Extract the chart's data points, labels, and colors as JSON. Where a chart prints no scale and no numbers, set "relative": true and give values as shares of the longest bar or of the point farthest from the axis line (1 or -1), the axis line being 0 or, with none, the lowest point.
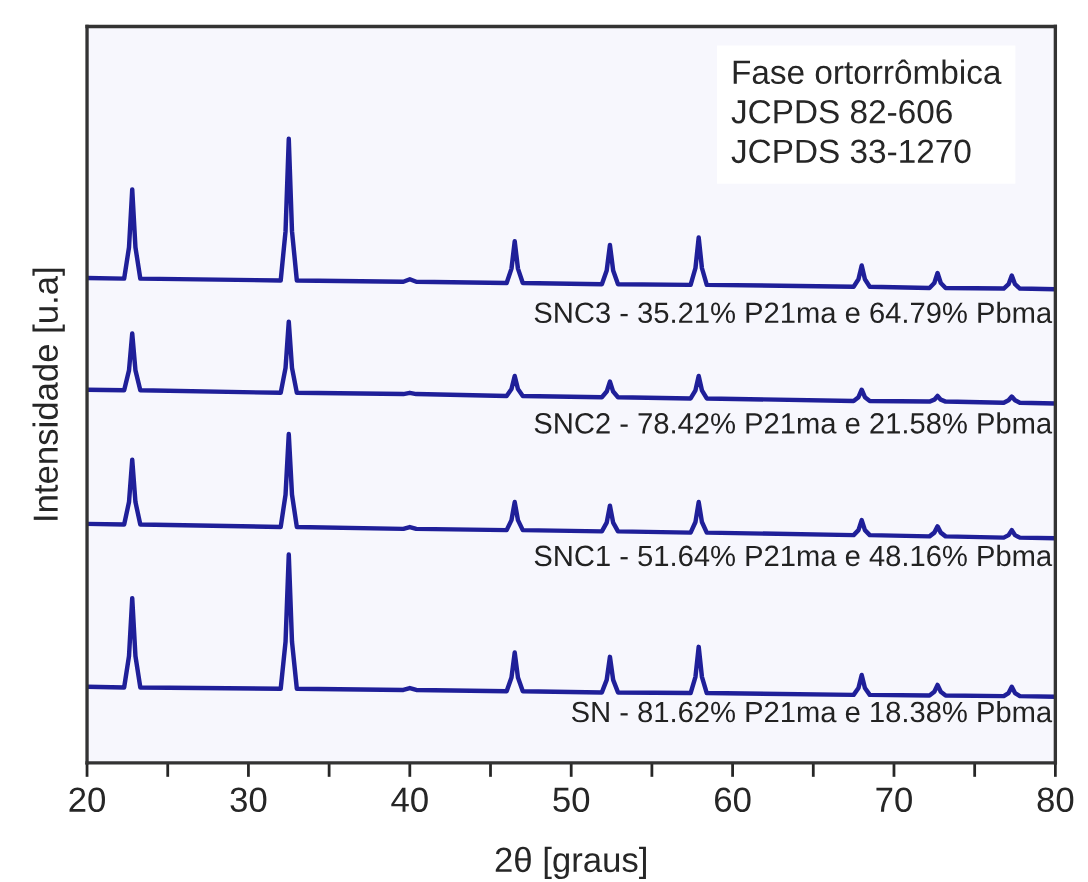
{
  "chart_data": {
    "type": "line",
    "relative": true,
    "xlabel": "2θ [graus]",
    "ylabel": "Intensidade [u.a]",
    "xlim": [
      20,
      80
    ],
    "xticks": [
      20,
      {
        "value": 25,
        "label": null
      },
      30,
      {
        "value": 35,
        "label": null
      },
      40,
      {
        "value": 45,
        "label": null
      },
      50,
      {
        "value": 55,
        "label": null
      },
      60,
      {
        "value": 65,
        "label": null
      },
      70,
      {
        "value": 75,
        "label": null
      },
      80
    ],
    "tick_labels": "x",
    "grid": false,
    "legend": false,
    "marker": "none",
    "line_style": "solid",
    "annotations": [
      "Fase ortorrômbica\nJCPDS 82-606\nJCPDS 33-1270"
    ],
    "x": [
      20,
      22.3,
      22.6,
      22.8,
      23.0,
      23.3,
      32.0,
      32.3,
      32.5,
      32.7,
      33.0,
      39.6,
      40.0,
      40.4,
      46.0,
      46.3,
      46.5,
      46.7,
      47.0,
      51.9,
      52.2,
      52.4,
      52.6,
      52.9,
      57.4,
      57.7,
      57.9,
      58.1,
      58.4,
      67.5,
      67.8,
      68.0,
      68.2,
      68.5,
      72.2,
      72.5,
      72.7,
      72.9,
      73.2,
      76.8,
      77.1,
      77.3,
      77.5,
      77.8,
      80
    ],
    "series": [
      {
        "name": "SN - 81.62% P21ma e 18.38% Pbma",
        "color": "#1f1f99",
        "values": [
          0.122,
          0.121,
          0.171,
          0.264,
          0.171,
          0.121,
          0.119,
          0.194,
          0.334,
          0.194,
          0.119,
          0.117,
          0.12,
          0.117,
          0.115,
          0.137,
          0.177,
          0.137,
          0.115,
          0.113,
          0.133,
          0.17,
          0.133,
          0.113,
          0.112,
          0.138,
          0.186,
          0.138,
          0.112,
          0.109,
          0.12,
          0.141,
          0.12,
          0.109,
          0.108,
          0.114,
          0.125,
          0.114,
          0.108,
          0.107,
          0.112,
          0.122,
          0.112,
          0.107,
          0.106
        ]
      },
      {
        "name": "SNC1 - 51.64% P21ma e 48.16% Pbma",
        "color": "#1f1f99",
        "values": [
          0.383,
          0.382,
          0.418,
          0.486,
          0.418,
          0.382,
          0.378,
          0.43,
          0.527,
          0.43,
          0.378,
          0.375,
          0.378,
          0.375,
          0.373,
          0.389,
          0.418,
          0.389,
          0.373,
          0.371,
          0.385,
          0.412,
          0.385,
          0.371,
          0.369,
          0.386,
          0.418,
          0.386,
          0.369,
          0.365,
          0.373,
          0.389,
          0.373,
          0.365,
          0.363,
          0.369,
          0.379,
          0.369,
          0.363,
          0.361,
          0.365,
          0.373,
          0.365,
          0.361,
          0.36
        ]
      },
      {
        "name": "SNC2 - 78.42% P21ma e 21.58% Pbma",
        "color": "#1f1f99",
        "values": [
          0.598,
          0.597,
          0.629,
          0.688,
          0.629,
          0.597,
          0.593,
          0.633,
          0.707,
          0.633,
          0.593,
          0.591,
          0.593,
          0.591,
          0.588,
          0.599,
          0.62,
          0.599,
          0.588,
          0.586,
          0.595,
          0.611,
          0.595,
          0.586,
          0.584,
          0.597,
          0.62,
          0.597,
          0.584,
          0.58,
          0.586,
          0.598,
          0.586,
          0.58,
          0.579,
          0.582,
          0.588,
          0.582,
          0.579,
          0.577,
          0.581,
          0.587,
          0.581,
          0.577,
          0.576
        ]
      },
      {
        "name": "SNC3 - 35.21% P21ma e 64.79% Pbma",
        "color": "#1f1f99",
        "values": [
          0.777,
          0.776,
          0.826,
          0.919,
          0.826,
          0.776,
          0.773,
          0.852,
          1.0,
          0.852,
          0.773,
          0.771,
          0.775,
          0.771,
          0.769,
          0.792,
          0.836,
          0.792,
          0.769,
          0.767,
          0.789,
          0.83,
          0.789,
          0.767,
          0.766,
          0.793,
          0.842,
          0.793,
          0.766,
          0.763,
          0.775,
          0.797,
          0.775,
          0.763,
          0.761,
          0.769,
          0.785,
          0.769,
          0.761,
          0.76,
          0.767,
          0.781,
          0.767,
          0.76,
          0.759
        ]
      }
    ]
  }
}
